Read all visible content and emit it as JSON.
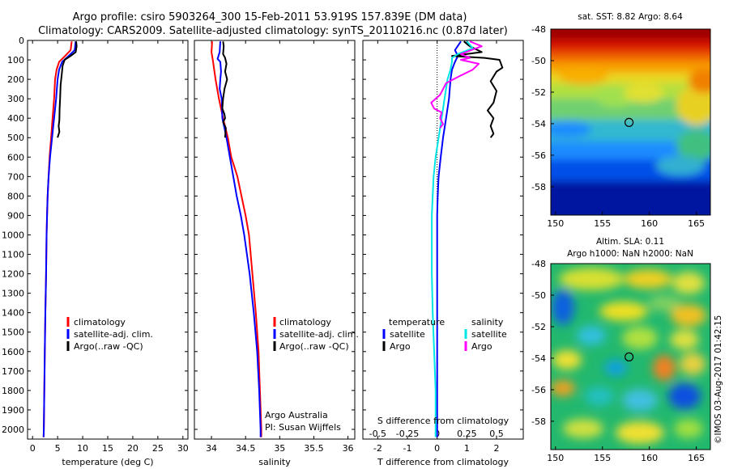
{
  "header": {
    "title_line1": "Argo profile: csiro 5903264_300 15-Feb-2011 53.919S 157.839E (DM data)",
    "title_line2": "Climatology: CARS2009. Satellite-adjusted climatology: synTS_20110216.nc (0.87d later)"
  },
  "colors": {
    "climatology": "#ff0000",
    "satellite": "#0000ff",
    "argo": "#000000",
    "sal_satellite": "#00e5e5",
    "sal_argo": "#ff00ff"
  },
  "annotations": {
    "institute": "Argo Australia",
    "pi": "PI: Susan Wijffels",
    "watermark": "©IMOS 03-Aug-2017 01:42:15"
  },
  "chart_data": [
    {
      "type": "line",
      "xlabel": "temperature (deg C)",
      "xlim": [
        -1,
        31
      ],
      "xticks": [
        0,
        5,
        10,
        15,
        20,
        25,
        30
      ],
      "ylim": [
        0,
        2050
      ],
      "yticks": [
        0,
        100,
        200,
        300,
        400,
        500,
        600,
        700,
        800,
        900,
        1000,
        1100,
        1200,
        1300,
        1400,
        1500,
        1600,
        1700,
        1800,
        1900,
        2000
      ],
      "legend": [
        "climatology",
        "satellite-adj. clim.",
        "Argo(..raw -QC)"
      ],
      "series": [
        {
          "name": "climatology",
          "color": "#ff0000",
          "points": [
            [
              7.8,
              5
            ],
            [
              7.6,
              50
            ],
            [
              6.5,
              80
            ],
            [
              5.3,
              110
            ],
            [
              4.8,
              150
            ],
            [
              4.5,
              200
            ],
            [
              4.3,
              300
            ],
            [
              4.0,
              400
            ],
            [
              3.7,
              500
            ],
            [
              3.4,
              600
            ],
            [
              3.2,
              700
            ],
            [
              3.0,
              800
            ],
            [
              2.9,
              900
            ],
            [
              2.8,
              1000
            ],
            [
              2.7,
              1200
            ],
            [
              2.55,
              1400
            ],
            [
              2.45,
              1600
            ],
            [
              2.35,
              1800
            ],
            [
              2.25,
              2000
            ],
            [
              2.2,
              2040
            ]
          ]
        },
        {
          "name": "satellite-adj. clim.",
          "color": "#0000ff",
          "points": [
            [
              8.6,
              5
            ],
            [
              8.4,
              50
            ],
            [
              7.2,
              80
            ],
            [
              5.9,
              110
            ],
            [
              5.3,
              150
            ],
            [
              5.0,
              200
            ],
            [
              4.7,
              300
            ],
            [
              4.3,
              400
            ],
            [
              3.9,
              500
            ],
            [
              3.5,
              600
            ],
            [
              3.2,
              700
            ],
            [
              3.0,
              800
            ],
            [
              2.9,
              900
            ],
            [
              2.8,
              1000
            ],
            [
              2.7,
              1200
            ],
            [
              2.55,
              1400
            ],
            [
              2.45,
              1600
            ],
            [
              2.35,
              1800
            ],
            [
              2.25,
              2000
            ],
            [
              2.2,
              2040
            ]
          ]
        },
        {
          "name": "Argo(..raw -QC)",
          "color": "#000000",
          "points": [
            [
              8.7,
              5
            ],
            [
              8.8,
              30
            ],
            [
              8.6,
              60
            ],
            [
              7.6,
              80
            ],
            [
              6.4,
              100
            ],
            [
              6.0,
              130
            ],
            [
              5.8,
              180
            ],
            [
              5.6,
              230
            ],
            [
              5.5,
              300
            ],
            [
              5.4,
              350
            ],
            [
              5.35,
              410
            ],
            [
              5.2,
              440
            ],
            [
              5.35,
              470
            ],
            [
              5.0,
              500
            ]
          ]
        }
      ]
    },
    {
      "type": "line",
      "xlabel": "salinity",
      "xlim": [
        33.75,
        36.1
      ],
      "xticks": [
        34,
        34.5,
        35,
        35.5,
        36
      ],
      "legend": [
        "climatology",
        "satellite-adj. clim.",
        "Argo(..raw -QC)"
      ],
      "series": [
        {
          "name": "climatology",
          "color": "#ff0000",
          "points": [
            [
              34.01,
              5
            ],
            [
              34.0,
              60
            ],
            [
              34.02,
              100
            ],
            [
              34.06,
              200
            ],
            [
              34.11,
              300
            ],
            [
              34.17,
              400
            ],
            [
              34.24,
              500
            ],
            [
              34.29,
              600
            ],
            [
              34.38,
              700
            ],
            [
              34.44,
              800
            ],
            [
              34.5,
              900
            ],
            [
              34.55,
              1000
            ],
            [
              34.6,
              1200
            ],
            [
              34.65,
              1400
            ],
            [
              34.69,
              1600
            ],
            [
              34.71,
              1800
            ],
            [
              34.73,
              2000
            ],
            [
              34.73,
              2040
            ]
          ]
        },
        {
          "name": "satellite-adj. clim.",
          "color": "#0000ff",
          "points": [
            [
              34.13,
              5
            ],
            [
              34.12,
              60
            ],
            [
              34.09,
              95
            ],
            [
              34.13,
              110
            ],
            [
              34.14,
              160
            ],
            [
              34.13,
              200
            ],
            [
              34.12,
              250
            ],
            [
              34.15,
              300
            ],
            [
              34.16,
              400
            ],
            [
              34.22,
              500
            ],
            [
              34.27,
              600
            ],
            [
              34.32,
              700
            ],
            [
              34.37,
              800
            ],
            [
              34.43,
              900
            ],
            [
              34.48,
              1000
            ],
            [
              34.56,
              1200
            ],
            [
              34.62,
              1400
            ],
            [
              34.67,
              1600
            ],
            [
              34.7,
              1800
            ],
            [
              34.72,
              2000
            ],
            [
              34.72,
              2040
            ]
          ]
        },
        {
          "name": "Argo(..raw -QC)",
          "color": "#000000",
          "points": [
            [
              34.17,
              5
            ],
            [
              34.18,
              30
            ],
            [
              34.17,
              70
            ],
            [
              34.2,
              90
            ],
            [
              34.22,
              120
            ],
            [
              34.2,
              160
            ],
            [
              34.23,
              200
            ],
            [
              34.19,
              250
            ],
            [
              34.17,
              300
            ],
            [
              34.16,
              350
            ],
            [
              34.19,
              380
            ],
            [
              34.2,
              400
            ],
            [
              34.17,
              420
            ],
            [
              34.21,
              450
            ],
            [
              34.2,
              500
            ]
          ]
        }
      ],
      "annotations": [
        "Argo Australia",
        "PI: Susan Wijffels"
      ]
    },
    {
      "type": "line",
      "xlabel": "T difference from climatology",
      "x2label": "S difference from climatology",
      "xlim": [
        -2.5,
        2.9
      ],
      "xticks": [
        -2,
        -1,
        0,
        1,
        2
      ],
      "x2ticks": [
        -0.5,
        -0.25,
        0,
        0.25,
        0.5
      ],
      "x2tick_labels": [
        "-0.5",
        "-0.25",
        "0",
        "0.25",
        "0.5"
      ],
      "legend_headers": [
        "temperature",
        "salinity"
      ],
      "legend": [
        "satellite",
        "Argo",
        "satellite",
        "Argo"
      ],
      "series": [
        {
          "name": "satellite",
          "color": "#0000ff",
          "points": [
            [
              0.8,
              5
            ],
            [
              0.6,
              50
            ],
            [
              0.7,
              80
            ],
            [
              0.6,
              110
            ],
            [
              0.5,
              150
            ],
            [
              0.45,
              200
            ],
            [
              0.4,
              300
            ],
            [
              0.3,
              400
            ],
            [
              0.2,
              500
            ],
            [
              0.12,
              600
            ],
            [
              0.05,
              700
            ],
            [
              0.02,
              800
            ],
            [
              0.0,
              900
            ],
            [
              0.0,
              1200
            ],
            [
              0.0,
              1600
            ],
            [
              0.0,
              2000
            ],
            [
              0.0,
              2040
            ]
          ]
        },
        {
          "name": "Argo",
          "color": "#000000",
          "points": [
            [
              0.9,
              5
            ],
            [
              1.1,
              30
            ],
            [
              1.5,
              60
            ],
            [
              0.5,
              80
            ],
            [
              1.6,
              90
            ],
            [
              2.1,
              100
            ],
            [
              2.2,
              140
            ],
            [
              2.0,
              160
            ],
            [
              1.8,
              210
            ],
            [
              2.0,
              260
            ],
            [
              1.9,
              320
            ],
            [
              1.7,
              360
            ],
            [
              1.9,
              400
            ],
            [
              1.8,
              440
            ],
            [
              1.9,
              480
            ],
            [
              1.8,
              500
            ]
          ]
        },
        {
          "name": "satellite",
          "color": "#00e5e5",
          "points": [
            [
              1.0,
              5
            ],
            [
              1.2,
              40
            ],
            [
              0.7,
              70
            ],
            [
              0.5,
              90
            ],
            [
              0.5,
              110
            ],
            [
              0.45,
              150
            ],
            [
              0.35,
              200
            ],
            [
              0.25,
              300
            ],
            [
              0.15,
              400
            ],
            [
              0.05,
              500
            ],
            [
              -0.05,
              600
            ],
            [
              -0.12,
              700
            ],
            [
              -0.15,
              800
            ],
            [
              -0.18,
              900
            ],
            [
              -0.18,
              1200
            ],
            [
              -0.15,
              1400
            ],
            [
              -0.1,
              1600
            ],
            [
              -0.05,
              1800
            ],
            [
              -0.05,
              2000
            ],
            [
              -0.05,
              2040
            ]
          ]
        },
        {
          "name": "Argo",
          "color": "#ff00ff",
          "points": [
            [
              1.1,
              5
            ],
            [
              1.5,
              30
            ],
            [
              0.8,
              70
            ],
            [
              1.1,
              90
            ],
            [
              0.8,
              100
            ],
            [
              1.4,
              120
            ],
            [
              1.2,
              150
            ],
            [
              0.8,
              180
            ],
            [
              0.3,
              220
            ],
            [
              0.1,
              280
            ],
            [
              -0.2,
              320
            ],
            [
              -0.1,
              350
            ],
            [
              0.15,
              370
            ],
            [
              0.1,
              400
            ],
            [
              0.2,
              430
            ],
            [
              0.1,
              450
            ]
          ]
        }
      ]
    },
    {
      "type": "heatmap",
      "title": "sat. SST: 8.82 Argo: 8.64",
      "xlim": [
        149.5,
        166.5
      ],
      "xticks": [
        150,
        155,
        160,
        165
      ],
      "ylim": [
        -59.8,
        -48
      ],
      "yticks": [
        -48,
        -50,
        -52,
        -54,
        -56,
        -58
      ],
      "marker": [
        157.839,
        -53.919
      ]
    },
    {
      "type": "heatmap",
      "title_line1": "Altim. SLA: 0.11",
      "title_line2": "Argo h1000: NaN h2000: NaN",
      "xlim": [
        149.5,
        166.5
      ],
      "xticks": [
        150,
        155,
        160,
        165
      ],
      "ylim": [
        -59.8,
        -48
      ],
      "yticks": [
        -48,
        -50,
        -52,
        -54,
        -56,
        -58
      ],
      "marker": [
        157.839,
        -53.919
      ]
    }
  ]
}
